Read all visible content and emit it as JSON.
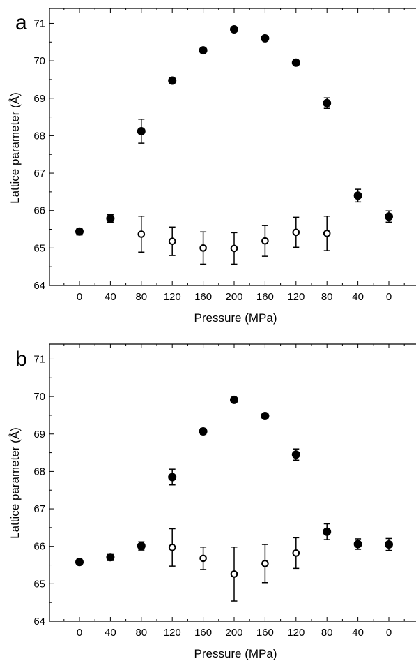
{
  "chart_data": [
    {
      "type": "scatter",
      "panel_label": "a",
      "xlabel": "Pressure (MPa)",
      "ylabel": "Lattice parameter (Å)",
      "categories": [
        "0",
        "40",
        "80",
        "120",
        "160",
        "200",
        "160",
        "120",
        "80",
        "40",
        "0"
      ],
      "ylim": [
        64,
        71.4
      ],
      "yticks": [
        64,
        65,
        66,
        67,
        68,
        69,
        70,
        71
      ],
      "series": [
        {
          "marker": "filled",
          "points": [
            {
              "i": 0,
              "y": 65.44,
              "err": 0.09
            },
            {
              "i": 1,
              "y": 65.79,
              "err": 0.1
            },
            {
              "i": 2,
              "y": 68.12,
              "err": 0.32
            },
            {
              "i": 3,
              "y": 69.47,
              "err": 0
            },
            {
              "i": 4,
              "y": 70.28,
              "err": 0
            },
            {
              "i": 5,
              "y": 70.84,
              "err": 0
            },
            {
              "i": 6,
              "y": 70.6,
              "err": 0
            },
            {
              "i": 7,
              "y": 69.95,
              "err": 0
            },
            {
              "i": 8,
              "y": 68.87,
              "err": 0.14
            },
            {
              "i": 9,
              "y": 66.4,
              "err": 0.17
            },
            {
              "i": 10,
              "y": 65.84,
              "err": 0.15
            }
          ]
        },
        {
          "marker": "open",
          "points": [
            {
              "i": 2,
              "y": 65.37,
              "err": 0.48
            },
            {
              "i": 3,
              "y": 65.18,
              "err": 0.38
            },
            {
              "i": 4,
              "y": 65.0,
              "err": 0.43
            },
            {
              "i": 5,
              "y": 64.99,
              "err": 0.42
            },
            {
              "i": 6,
              "y": 65.19,
              "err": 0.41
            },
            {
              "i": 7,
              "y": 65.42,
              "err": 0.4
            },
            {
              "i": 8,
              "y": 65.39,
              "err": 0.46
            }
          ]
        }
      ]
    },
    {
      "type": "scatter",
      "panel_label": "b",
      "xlabel": "Pressure (MPa)",
      "ylabel": "Lattice parameter (Å)",
      "categories": [
        "0",
        "40",
        "80",
        "120",
        "160",
        "200",
        "160",
        "120",
        "80",
        "40",
        "0"
      ],
      "ylim": [
        64,
        71.4
      ],
      "yticks": [
        64,
        65,
        66,
        67,
        68,
        69,
        70,
        71
      ],
      "series": [
        {
          "marker": "filled",
          "points": [
            {
              "i": 0,
              "y": 65.58,
              "err": 0.07
            },
            {
              "i": 1,
              "y": 65.71,
              "err": 0.09
            },
            {
              "i": 2,
              "y": 66.01,
              "err": 0.11
            },
            {
              "i": 3,
              "y": 67.85,
              "err": 0.21
            },
            {
              "i": 4,
              "y": 69.07,
              "err": 0.08
            },
            {
              "i": 5,
              "y": 69.91,
              "err": 0
            },
            {
              "i": 6,
              "y": 69.48,
              "err": 0
            },
            {
              "i": 7,
              "y": 68.45,
              "err": 0.15
            },
            {
              "i": 8,
              "y": 66.39,
              "err": 0.21
            },
            {
              "i": 9,
              "y": 66.06,
              "err": 0.14
            },
            {
              "i": 10,
              "y": 66.05,
              "err": 0.16
            }
          ]
        },
        {
          "marker": "open",
          "points": [
            {
              "i": 3,
              "y": 65.97,
              "err": 0.5
            },
            {
              "i": 4,
              "y": 65.68,
              "err": 0.3
            },
            {
              "i": 5,
              "y": 65.26,
              "err": 0.72
            },
            {
              "i": 6,
              "y": 65.54,
              "err": 0.51
            },
            {
              "i": 7,
              "y": 65.82,
              "err": 0.41
            }
          ]
        }
      ]
    }
  ]
}
